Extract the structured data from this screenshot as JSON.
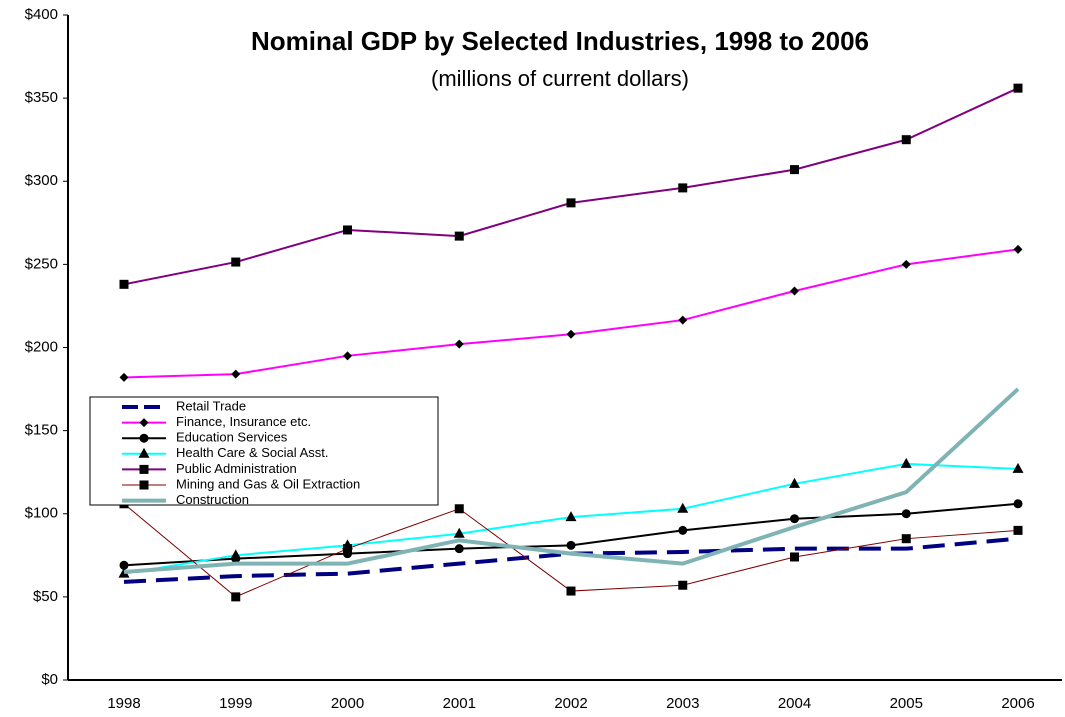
{
  "chart_data": {
    "type": "line",
    "title": "Nominal GDP by Selected Industries, 1998 to 2006",
    "subtitle": "(millions of current dollars)",
    "categories": [
      "1998",
      "1999",
      "2000",
      "2001",
      "2002",
      "2003",
      "2004",
      "2005",
      "2006"
    ],
    "ylim": [
      0,
      400
    ],
    "yticks": [
      {
        "value": 0,
        "label": "$0"
      },
      {
        "value": 50,
        "label": "$50"
      },
      {
        "value": 100,
        "label": "$100"
      },
      {
        "value": 150,
        "label": "$150"
      },
      {
        "value": 200,
        "label": "$200"
      },
      {
        "value": 250,
        "label": "$250"
      },
      {
        "value": 300,
        "label": "$300"
      },
      {
        "value": 350,
        "label": "$350"
      },
      {
        "value": 400,
        "label": "$400"
      }
    ],
    "grid": false,
    "legend": "left",
    "series": [
      {
        "name": "Retail Trade",
        "color": "#000080",
        "marker": "none",
        "dash": true,
        "width": 4,
        "values": [
          59,
          62.5,
          64,
          70,
          76,
          77,
          79,
          79,
          85
        ]
      },
      {
        "name": "Finance, Insurance etc.",
        "color": "#ff00ff",
        "marker": "diamond",
        "width": 2,
        "values": [
          182,
          184,
          195,
          202,
          208,
          216.5,
          234,
          250,
          259
        ]
      },
      {
        "name": "Education Services",
        "color": "#000000",
        "marker": "circle",
        "width": 2,
        "values": [
          69,
          73,
          76,
          79,
          81,
          90,
          97,
          100,
          106
        ]
      },
      {
        "name": "Health Care & Social Asst.",
        "color": "#00ffff",
        "marker": "triangle",
        "width": 2,
        "values": [
          64,
          75,
          81,
          88,
          98,
          103,
          118,
          130,
          127
        ]
      },
      {
        "name": "Public Administration",
        "color": "#800080",
        "marker": "square",
        "width": 2,
        "values": [
          238,
          251.4,
          270.7,
          267,
          287,
          296,
          307,
          325,
          356
        ]
      },
      {
        "name": "Mining and Gas & Oil Extraction",
        "color": "#800000",
        "marker": "square",
        "width": 1,
        "values": [
          106,
          50,
          79,
          103,
          53.5,
          57,
          74,
          85,
          90
        ]
      },
      {
        "name": "Construction",
        "color": "#80b4b4",
        "marker": "none",
        "width": 4,
        "values": [
          65,
          70,
          70,
          84,
          76,
          70,
          92,
          113,
          175
        ]
      }
    ]
  }
}
